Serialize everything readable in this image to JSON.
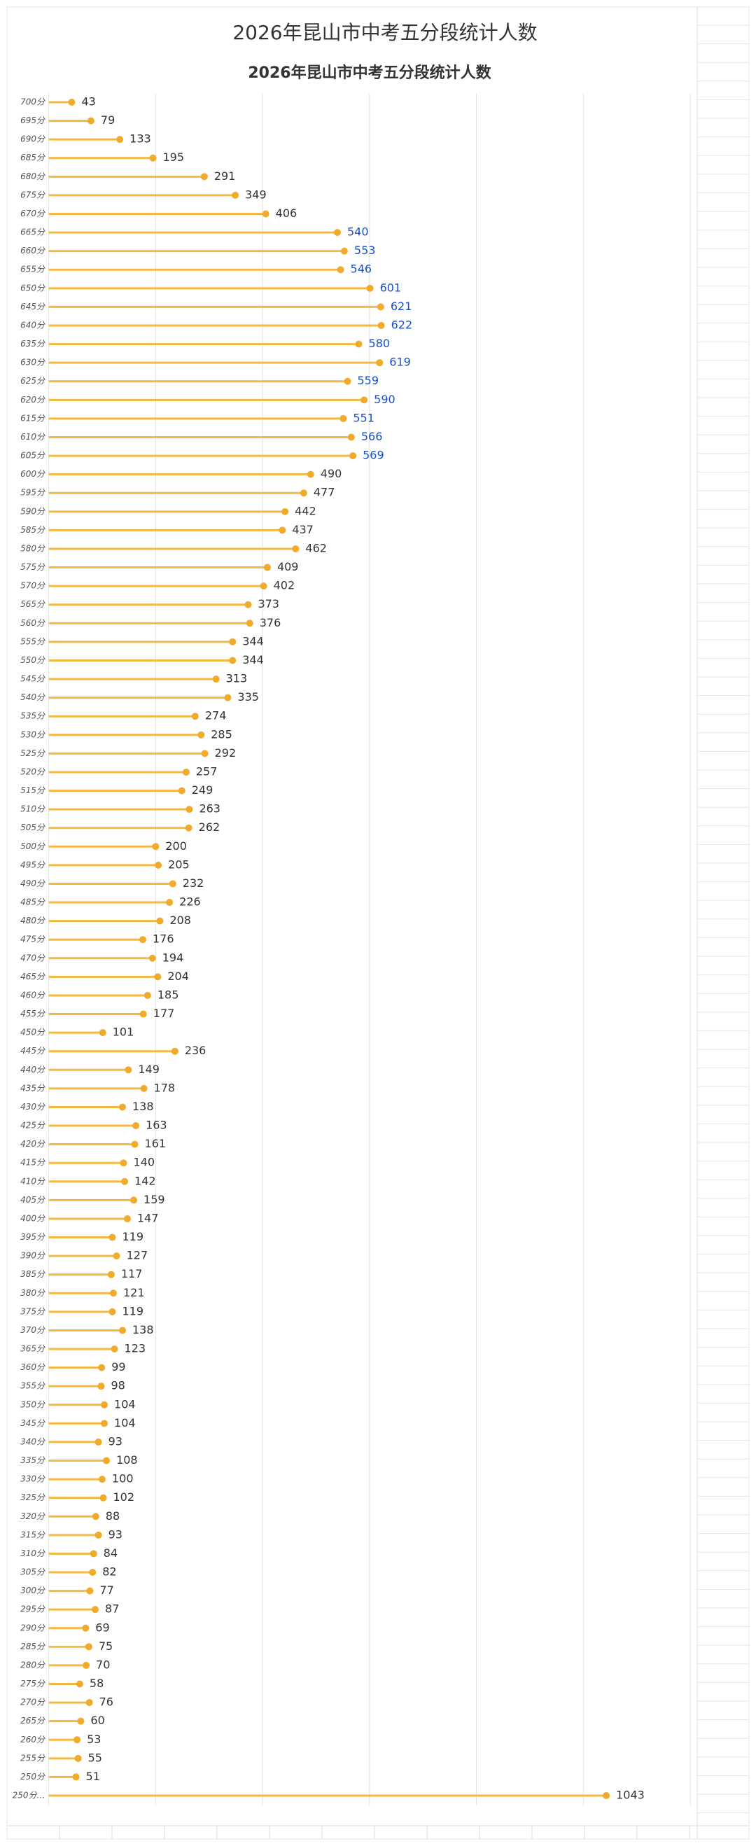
{
  "chart_data": {
    "type": "lollipop",
    "title": "2026年昆山市中考五分段统计人数",
    "subtitle": "2026年昆山市中考五分段统计人数",
    "categories": [
      "700分",
      "695分",
      "690分",
      "685分",
      "680分",
      "675分",
      "670分",
      "665分",
      "660分",
      "655分",
      "650分",
      "645分",
      "640分",
      "635分",
      "630分",
      "625分",
      "620分",
      "615分",
      "610分",
      "605分",
      "600分",
      "595分",
      "590分",
      "585分",
      "580分",
      "575分",
      "570分",
      "565分",
      "560分",
      "555分",
      "550分",
      "545分",
      "540分",
      "535分",
      "530分",
      "525分",
      "520分",
      "515分",
      "510分",
      "505分",
      "500分",
      "495分",
      "490分",
      "485分",
      "480分",
      "475分",
      "470分",
      "465分",
      "460分",
      "455分",
      "450分",
      "445分",
      "440分",
      "435分",
      "430分",
      "425分",
      "420分",
      "415分",
      "410分",
      "405分",
      "400分",
      "395分",
      "390分",
      "385分",
      "380分",
      "375分",
      "370分",
      "365分",
      "360分",
      "355分",
      "350分",
      "345分",
      "340分",
      "335分",
      "330分",
      "325分",
      "320分",
      "315分",
      "310分",
      "305分",
      "300分",
      "295分",
      "290分",
      "285分",
      "280分",
      "275分",
      "270分",
      "265分",
      "260分",
      "255分",
      "250分",
      "250分..."
    ],
    "values": [
      43,
      79,
      133,
      195,
      291,
      349,
      406,
      540,
      553,
      546,
      601,
      621,
      622,
      580,
      619,
      559,
      590,
      551,
      566,
      569,
      490,
      477,
      442,
      437,
      462,
      409,
      402,
      373,
      376,
      344,
      344,
      313,
      335,
      274,
      285,
      292,
      257,
      249,
      263,
      262,
      200,
      205,
      232,
      226,
      208,
      176,
      194,
      204,
      185,
      177,
      101,
      236,
      149,
      178,
      138,
      163,
      161,
      140,
      142,
      159,
      147,
      119,
      127,
      117,
      121,
      119,
      138,
      123,
      99,
      98,
      104,
      104,
      93,
      108,
      100,
      102,
      88,
      93,
      84,
      82,
      77,
      87,
      69,
      75,
      70,
      58,
      76,
      60,
      53,
      55,
      51,
      1043
    ],
    "label_colors": [
      "#333",
      "#333",
      "#333",
      "#333",
      "#333",
      "#333",
      "#333",
      "#1a4fc4",
      "#1a4fc4",
      "#1a4fc4",
      "#1a4fc4",
      "#1a4fc4",
      "#1a4fc4",
      "#1a4fc4",
      "#1a4fc4",
      "#1a4fc4",
      "#1a4fc4",
      "#1a4fc4",
      "#1a4fc4",
      "#1a4fc4",
      "#333",
      "#333",
      "#333",
      "#333",
      "#333",
      "#333",
      "#333",
      "#333",
      "#333",
      "#333",
      "#333",
      "#333",
      "#333",
      "#333",
      "#333",
      "#333",
      "#333",
      "#333",
      "#333",
      "#333",
      "#333",
      "#333",
      "#333",
      "#333",
      "#333",
      "#333",
      "#333",
      "#333",
      "#333",
      "#333",
      "#333",
      "#333",
      "#333",
      "#333",
      "#333",
      "#333",
      "#333",
      "#333",
      "#333",
      "#333",
      "#333",
      "#333",
      "#333",
      "#333",
      "#333",
      "#333",
      "#333",
      "#333",
      "#333",
      "#333",
      "#333",
      "#333",
      "#333",
      "#333",
      "#333",
      "#333",
      "#333",
      "#333",
      "#333",
      "#333",
      "#333",
      "#333",
      "#333",
      "#333",
      "#333",
      "#333",
      "#333",
      "#333",
      "#333",
      "#333",
      "#333",
      "#333"
    ],
    "color": "#f5b942",
    "dot_color": "#f0aa2c",
    "xlim": [
      0,
      1200
    ],
    "xticks": [
      0,
      200,
      400,
      600,
      800,
      1000,
      1200
    ],
    "grid": true
  }
}
